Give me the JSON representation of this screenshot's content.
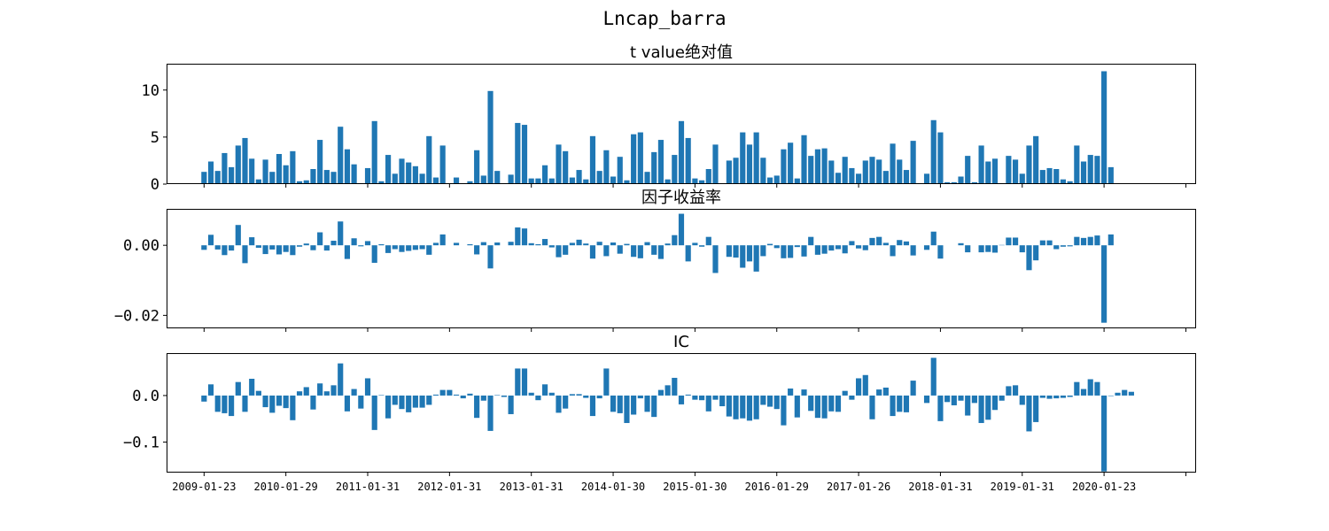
{
  "figure_title": "Lncap_barra",
  "bar_color": "#1f77b4",
  "chart_data": [
    {
      "type": "bar",
      "title": "t value绝对值",
      "ylim": [
        0,
        12.8
      ],
      "yticks": [
        0,
        5,
        10
      ],
      "ytick_labels": [
        "0",
        "5",
        "10"
      ],
      "x_domain": [
        -5.5,
        145.5
      ],
      "xticks": [
        0,
        12,
        24,
        36,
        48,
        60,
        72,
        84,
        96,
        108,
        120,
        132,
        144
      ],
      "xtick_labels": [],
      "values": [
        1.3,
        2.4,
        1.4,
        3.3,
        1.8,
        4.1,
        4.9,
        2.7,
        0.5,
        2.6,
        1.3,
        3.2,
        2.0,
        3.5,
        0.3,
        0.4,
        1.6,
        4.7,
        1.5,
        1.3,
        6.1,
        3.7,
        2.1,
        0.1,
        1.7,
        6.7,
        0.3,
        3.1,
        1.1,
        2.7,
        2.3,
        1.9,
        1.1,
        5.1,
        0.7,
        4.1,
        0.0,
        0.7,
        0.1,
        0.3,
        3.6,
        0.9,
        9.9,
        1.4,
        0.1,
        1.0,
        6.5,
        6.3,
        0.6,
        0.6,
        2.0,
        0.6,
        4.2,
        3.5,
        0.7,
        1.5,
        0.5,
        5.1,
        1.4,
        3.6,
        0.8,
        2.9,
        0.4,
        5.3,
        5.5,
        1.3,
        3.4,
        4.7,
        0.5,
        3.1,
        6.7,
        4.9,
        0.6,
        0.4,
        1.6,
        4.2,
        0.0,
        2.5,
        2.8,
        5.5,
        4.2,
        5.5,
        2.8,
        0.7,
        0.9,
        3.7,
        4.4,
        0.6,
        5.2,
        3.0,
        3.7,
        3.8,
        2.5,
        1.2,
        2.9,
        1.7,
        1.1,
        2.5,
        2.9,
        2.6,
        1.4,
        4.3,
        2.6,
        1.5,
        4.6,
        0.0,
        1.1,
        6.8,
        5.5,
        0.2,
        0.2,
        0.8,
        3.0,
        0.2,
        4.1,
        2.4,
        2.7,
        0.1,
        3.0,
        2.6,
        1.1,
        4.1,
        5.1,
        1.5,
        1.7,
        1.6,
        0.5,
        0.3,
        4.1,
        2.4,
        3.1,
        3.0,
        12.0,
        1.8
      ]
    },
    {
      "type": "bar",
      "title": "因子收益率",
      "ylim": [
        -0.0237,
        0.0104
      ],
      "yticks": [
        0.0,
        -0.02
      ],
      "ytick_labels": [
        "0.00",
        "−0.02"
      ],
      "x_domain": [
        -5.5,
        145.5
      ],
      "xticks": [
        0,
        12,
        24,
        36,
        48,
        60,
        72,
        84,
        96,
        108,
        120,
        132,
        144
      ],
      "xtick_labels": [],
      "values": [
        -0.0013,
        0.003,
        -0.0012,
        -0.0028,
        -0.0015,
        0.0058,
        -0.0051,
        0.0023,
        -0.0007,
        -0.0025,
        -0.0012,
        -0.0026,
        -0.0019,
        -0.0028,
        -0.0004,
        0.0005,
        -0.0014,
        0.0037,
        -0.0015,
        0.0013,
        0.0068,
        -0.0039,
        0.002,
        -0.0003,
        0.0012,
        -0.005,
        0.0003,
        -0.0022,
        -0.0011,
        -0.0019,
        -0.0016,
        -0.0013,
        -0.0011,
        -0.0027,
        0.0007,
        0.0031,
        0.0,
        0.0007,
        0.0,
        0.0003,
        -0.0026,
        0.0009,
        -0.0066,
        0.0008,
        0.0,
        0.001,
        0.0051,
        0.0048,
        0.0006,
        0.0003,
        0.0018,
        -0.0006,
        -0.0034,
        -0.0027,
        0.0007,
        0.0016,
        0.0005,
        -0.0038,
        0.001,
        -0.0031,
        0.0008,
        -0.0024,
        0.0004,
        -0.0033,
        -0.0037,
        0.0009,
        -0.0027,
        -0.0039,
        0.0005,
        0.0029,
        0.009,
        -0.0046,
        0.0007,
        -0.0004,
        0.0024,
        -0.0079,
        0.0,
        -0.0033,
        -0.0035,
        -0.0064,
        -0.0046,
        -0.0075,
        -0.0031,
        0.0004,
        -0.0008,
        -0.0037,
        -0.0036,
        -0.0005,
        -0.0032,
        0.0024,
        -0.0027,
        -0.0024,
        -0.0015,
        -0.0011,
        -0.0023,
        0.0012,
        -0.0009,
        -0.0014,
        0.0021,
        0.0024,
        0.0007,
        -0.0031,
        0.0015,
        0.0011,
        -0.0029,
        0.0,
        -0.0013,
        0.0039,
        -0.0038,
        0.0,
        0.0,
        0.0006,
        -0.002,
        0.0,
        -0.002,
        -0.0019,
        -0.0021,
        0.0001,
        0.0022,
        0.0022,
        -0.002,
        -0.0071,
        -0.0043,
        0.0014,
        0.0014,
        -0.0011,
        -0.0004,
        -0.0003,
        0.0024,
        0.0021,
        0.0024,
        0.0028,
        -0.0221,
        0.0031
      ]
    },
    {
      "type": "bar",
      "title": "IC",
      "ylim": [
        -0.1655,
        0.0911
      ],
      "yticks": [
        0.0,
        -0.1
      ],
      "ytick_labels": [
        "0.0",
        "−0.1"
      ],
      "x_domain": [
        -5.5,
        145.5
      ],
      "xticks": [
        0,
        12,
        24,
        36,
        48,
        60,
        72,
        84,
        96,
        108,
        120,
        132,
        144
      ],
      "xtick_labels": [
        "2009-01-23",
        "2010-01-29",
        "2011-01-31",
        "2012-01-31",
        "2013-01-31",
        "2014-01-30",
        "2015-01-30",
        "2016-01-29",
        "2017-01-26",
        "2018-01-31",
        "2019-01-31",
        "2020-01-23",
        ""
      ],
      "values": [
        -0.013,
        0.024,
        -0.035,
        -0.038,
        -0.044,
        0.029,
        -0.035,
        0.036,
        0.01,
        -0.025,
        -0.037,
        -0.022,
        -0.027,
        -0.053,
        0.009,
        0.018,
        -0.03,
        0.026,
        0.009,
        0.022,
        0.069,
        -0.034,
        0.014,
        -0.028,
        0.037,
        -0.074,
        0.001,
        -0.049,
        -0.02,
        -0.029,
        -0.036,
        -0.026,
        -0.026,
        -0.02,
        0.002,
        0.012,
        0.012,
        0.002,
        -0.006,
        0.004,
        -0.048,
        -0.011,
        -0.076,
        0.001,
        -0.003,
        -0.04,
        0.058,
        0.058,
        0.006,
        -0.01,
        0.024,
        0.006,
        -0.037,
        -0.028,
        0.003,
        0.003,
        -0.005,
        -0.044,
        -0.006,
        0.058,
        -0.035,
        -0.038,
        -0.059,
        -0.041,
        -0.006,
        -0.035,
        -0.046,
        0.012,
        0.022,
        0.038,
        -0.019,
        0.002,
        -0.009,
        -0.01,
        -0.034,
        -0.009,
        -0.023,
        -0.045,
        -0.051,
        -0.049,
        -0.054,
        -0.051,
        -0.02,
        -0.024,
        -0.029,
        -0.064,
        0.015,
        -0.047,
        0.013,
        -0.033,
        -0.048,
        -0.049,
        -0.034,
        -0.035,
        0.01,
        -0.009,
        0.037,
        0.044,
        -0.051,
        0.013,
        0.017,
        -0.044,
        -0.035,
        -0.036,
        0.032,
        0.0,
        -0.016,
        0.081,
        -0.055,
        -0.014,
        -0.021,
        -0.011,
        -0.043,
        -0.016,
        -0.059,
        -0.052,
        -0.031,
        -0.011,
        0.02,
        0.022,
        -0.02,
        -0.077,
        -0.057,
        -0.005,
        -0.007,
        -0.006,
        -0.005,
        -0.003,
        0.029,
        0.014,
        0.035,
        0.029,
        -0.163,
        -0.001,
        0.006,
        0.012,
        0.008
      ]
    }
  ]
}
